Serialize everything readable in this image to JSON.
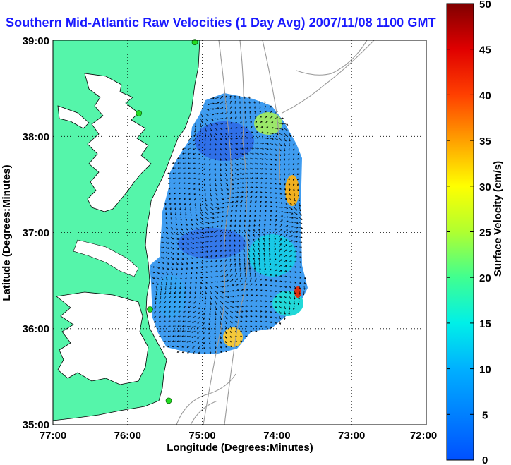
{
  "title": "Southern Mid-Atlantic Raw Velocities (1 Day Avg) 2007/11/08 1100 GMT",
  "chart_data": {
    "type": "heatmap",
    "xlabel": "Longitude (Degrees:Minutes)",
    "ylabel": "Latitude (Degrees:Minutes)",
    "x_ticks": [
      "77:00",
      "76:00",
      "75:00",
      "74:00",
      "73:00",
      "72:00"
    ],
    "y_ticks": [
      "39:00",
      "38:00",
      "37:00",
      "36:00",
      "35:00"
    ],
    "xlim": [
      -77,
      -72
    ],
    "ylim": [
      35,
      39
    ],
    "grid": true,
    "colorbar": {
      "label": "Surface Velocity (cm/s)",
      "ticks": [
        "50",
        "45",
        "40",
        "35",
        "30",
        "25",
        "20",
        "15",
        "10",
        "5",
        "0"
      ],
      "range": [
        0,
        50
      ]
    },
    "stations": [
      {
        "lon": -75.1,
        "lat": 38.98
      },
      {
        "lon": -75.85,
        "lat": 38.24
      },
      {
        "lon": -75.7,
        "lat": 36.2
      },
      {
        "lon": -75.45,
        "lat": 35.25
      }
    ]
  },
  "colors": {
    "land": "#55f5aa",
    "title": "#1a1aff",
    "station": "#22dd22",
    "field_base": "#3f9cf0"
  }
}
